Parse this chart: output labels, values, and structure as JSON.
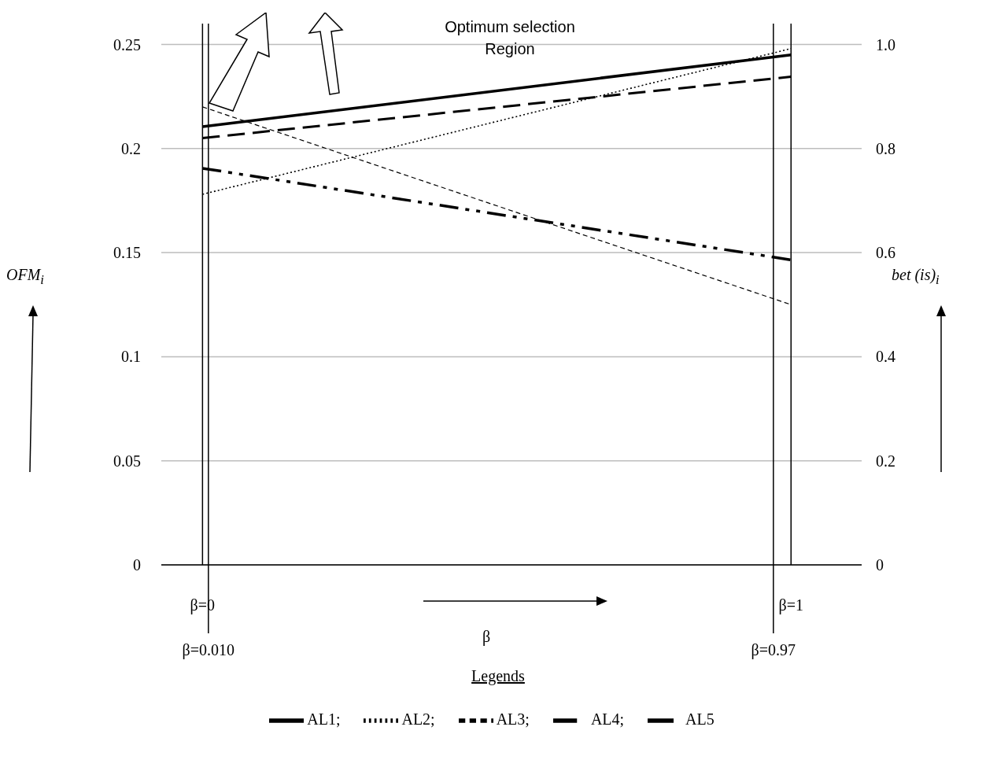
{
  "chart_data": {
    "type": "line",
    "annotations": [
      "Optimum selection Region"
    ],
    "xlabel": "β",
    "ylabel": "OFM$_{i}$",
    "y2label": "bet (is)$_{i}$",
    "legend_title": "Legends",
    "x": [
      0,
      1
    ],
    "series": [
      {
        "name": "AL1;",
        "color": "#000000",
        "line_style": "solid",
        "values": [
          0.2105,
          0.245
        ]
      },
      {
        "name": "AL2;",
        "color": "#000000",
        "line_style": "dotted",
        "values": [
          0.178,
          0.248
        ]
      },
      {
        "name": "AL3;",
        "color": "#000000",
        "line_style": "dashed",
        "values": [
          0.22,
          0.125
        ]
      },
      {
        "name": "AL4;",
        "color": "#000000",
        "line_style": "longdash",
        "values": [
          0.205,
          0.2345
        ]
      },
      {
        "name": "AL5",
        "color": "#000000",
        "line_style": "dashdot",
        "values": [
          0.1905,
          0.1465
        ]
      }
    ],
    "xlim": [
      -0.07,
      1.12
    ],
    "xticks": [
      {
        "value": 0,
        "label": "β=0"
      },
      {
        "value": 1,
        "label": "β=1"
      }
    ],
    "ylim": [
      0,
      0.26
    ],
    "yticks": [
      0,
      0.05,
      0.1,
      0.15,
      0.2,
      0.25
    ],
    "y2lim": [
      0,
      1.04
    ],
    "y2ticks": [
      0,
      0.2,
      0.4,
      0.6,
      0.8,
      {
        "value": 1,
        "label": "1.0"
      }
    ],
    "ref_lines": [
      {
        "axis": "x",
        "value": 0,
        "color": "#000000"
      },
      {
        "axis": "x",
        "value": 0.01,
        "label": "β=0.010",
        "color": "#000000"
      },
      {
        "axis": "x",
        "value": 0.97,
        "label": "β=0.97",
        "color": "#000000"
      },
      {
        "axis": "x",
        "value": 1,
        "color": "#000000"
      }
    ],
    "grid": "y",
    "legend": "bottom"
  }
}
